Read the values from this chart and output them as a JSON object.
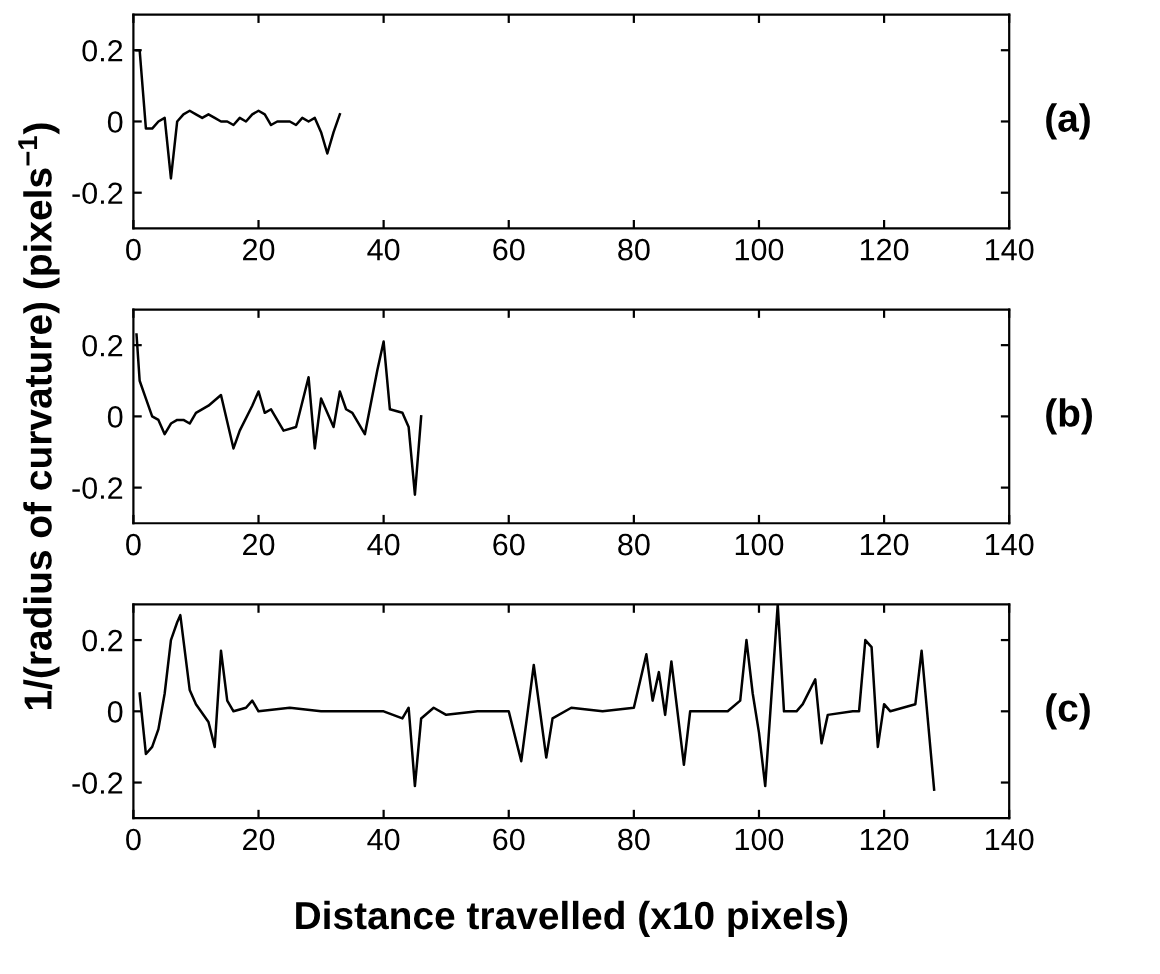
{
  "chart_data": [
    {
      "type": "line",
      "annotations": [
        "(a)"
      ],
      "xlim": [
        0,
        140
      ],
      "ylim": [
        -0.3,
        0.3
      ],
      "xticks": [
        0,
        20,
        40,
        60,
        80,
        100,
        120,
        140
      ],
      "yticks": [
        -0.2,
        0,
        0.2
      ],
      "grid": false,
      "legend": false,
      "x": [
        0.5,
        1,
        2,
        3,
        4,
        5,
        6,
        7,
        8,
        9,
        10,
        11,
        12,
        13,
        14,
        15,
        16,
        17,
        18,
        19,
        20,
        21,
        22,
        23,
        24,
        25,
        26,
        27,
        28,
        29,
        30,
        31,
        32,
        33
      ],
      "series": [
        {
          "color": "#000000",
          "values": [
            0.2,
            0.2,
            -0.02,
            -0.02,
            0.0,
            0.01,
            -0.16,
            0.0,
            0.02,
            0.03,
            0.02,
            0.01,
            0.02,
            0.01,
            0.0,
            0.0,
            -0.01,
            0.01,
            0.0,
            0.02,
            0.03,
            0.02,
            -0.01,
            0.0,
            0.0,
            0.0,
            -0.01,
            0.01,
            0.0,
            0.01,
            -0.03,
            -0.09,
            -0.03,
            0.02
          ]
        }
      ]
    },
    {
      "type": "line",
      "annotations": [
        "(b)"
      ],
      "ylabel": "1/(radius of curvature) (pixels$^{−1}$)",
      "xlim": [
        0,
        140
      ],
      "ylim": [
        -0.3,
        0.3
      ],
      "xticks": [
        0,
        20,
        40,
        60,
        80,
        100,
        120,
        140
      ],
      "yticks": [
        -0.2,
        0,
        0.2
      ],
      "grid": false,
      "legend": false,
      "x": [
        0.5,
        1,
        2,
        3,
        4,
        5,
        6,
        7,
        8,
        9,
        10,
        12,
        14,
        16,
        17,
        19,
        20,
        21,
        22,
        24,
        26,
        28,
        29,
        30,
        32,
        33,
        34,
        35,
        37,
        39,
        40,
        41,
        43,
        44,
        45,
        46
      ],
      "series": [
        {
          "color": "#000000",
          "values": [
            0.23,
            0.1,
            0.05,
            0.0,
            -0.01,
            -0.05,
            -0.02,
            -0.01,
            -0.01,
            -0.02,
            0.01,
            0.03,
            0.06,
            -0.09,
            -0.04,
            0.03,
            0.07,
            0.01,
            0.02,
            -0.04,
            -0.03,
            0.11,
            -0.09,
            0.05,
            -0.03,
            0.07,
            0.02,
            0.01,
            -0.05,
            0.13,
            0.21,
            0.02,
            0.01,
            -0.03,
            -0.22,
            0.0
          ]
        }
      ]
    },
    {
      "type": "line",
      "annotations": [
        "(c)"
      ],
      "xlabel": "Distance travelled (x10 pixels)",
      "xlim": [
        0,
        140
      ],
      "ylim": [
        -0.3,
        0.3
      ],
      "xticks": [
        0,
        20,
        40,
        60,
        80,
        100,
        120,
        140
      ],
      "yticks": [
        -0.2,
        0,
        0.2
      ],
      "grid": false,
      "legend": false,
      "x": [
        1,
        2,
        3,
        4,
        5,
        6,
        7,
        7.5,
        8,
        9,
        10,
        12,
        13,
        14,
        15,
        16,
        18,
        19,
        20,
        25,
        30,
        40,
        43,
        44,
        45,
        46,
        48,
        50,
        55,
        60,
        62,
        64,
        66,
        67,
        70,
        75,
        80,
        82,
        83,
        84,
        85,
        86,
        88,
        89,
        95,
        97,
        98,
        99,
        100,
        101,
        103,
        104,
        106,
        107,
        109,
        110,
        111,
        115,
        116,
        117,
        118,
        119,
        120,
        121,
        125,
        126,
        128
      ],
      "series": [
        {
          "color": "#000000",
          "values": [
            0.05,
            -0.12,
            -0.1,
            -0.05,
            0.05,
            0.2,
            0.25,
            0.27,
            0.2,
            0.06,
            0.02,
            -0.03,
            -0.1,
            0.17,
            0.03,
            0.0,
            0.01,
            0.03,
            0.0,
            0.01,
            0.0,
            0.0,
            -0.02,
            0.01,
            -0.21,
            -0.02,
            0.01,
            -0.01,
            0.0,
            0.0,
            -0.14,
            0.13,
            -0.13,
            -0.02,
            0.01,
            0.0,
            0.01,
            0.16,
            0.03,
            0.11,
            -0.01,
            0.14,
            -0.15,
            0.0,
            0.0,
            0.03,
            0.2,
            0.05,
            -0.06,
            -0.21,
            0.3,
            0.0,
            0.0,
            0.02,
            0.09,
            -0.09,
            -0.01,
            0.0,
            0.0,
            0.2,
            0.18,
            -0.1,
            0.02,
            0.0,
            0.02,
            0.17,
            -0.22
          ]
        }
      ]
    }
  ]
}
